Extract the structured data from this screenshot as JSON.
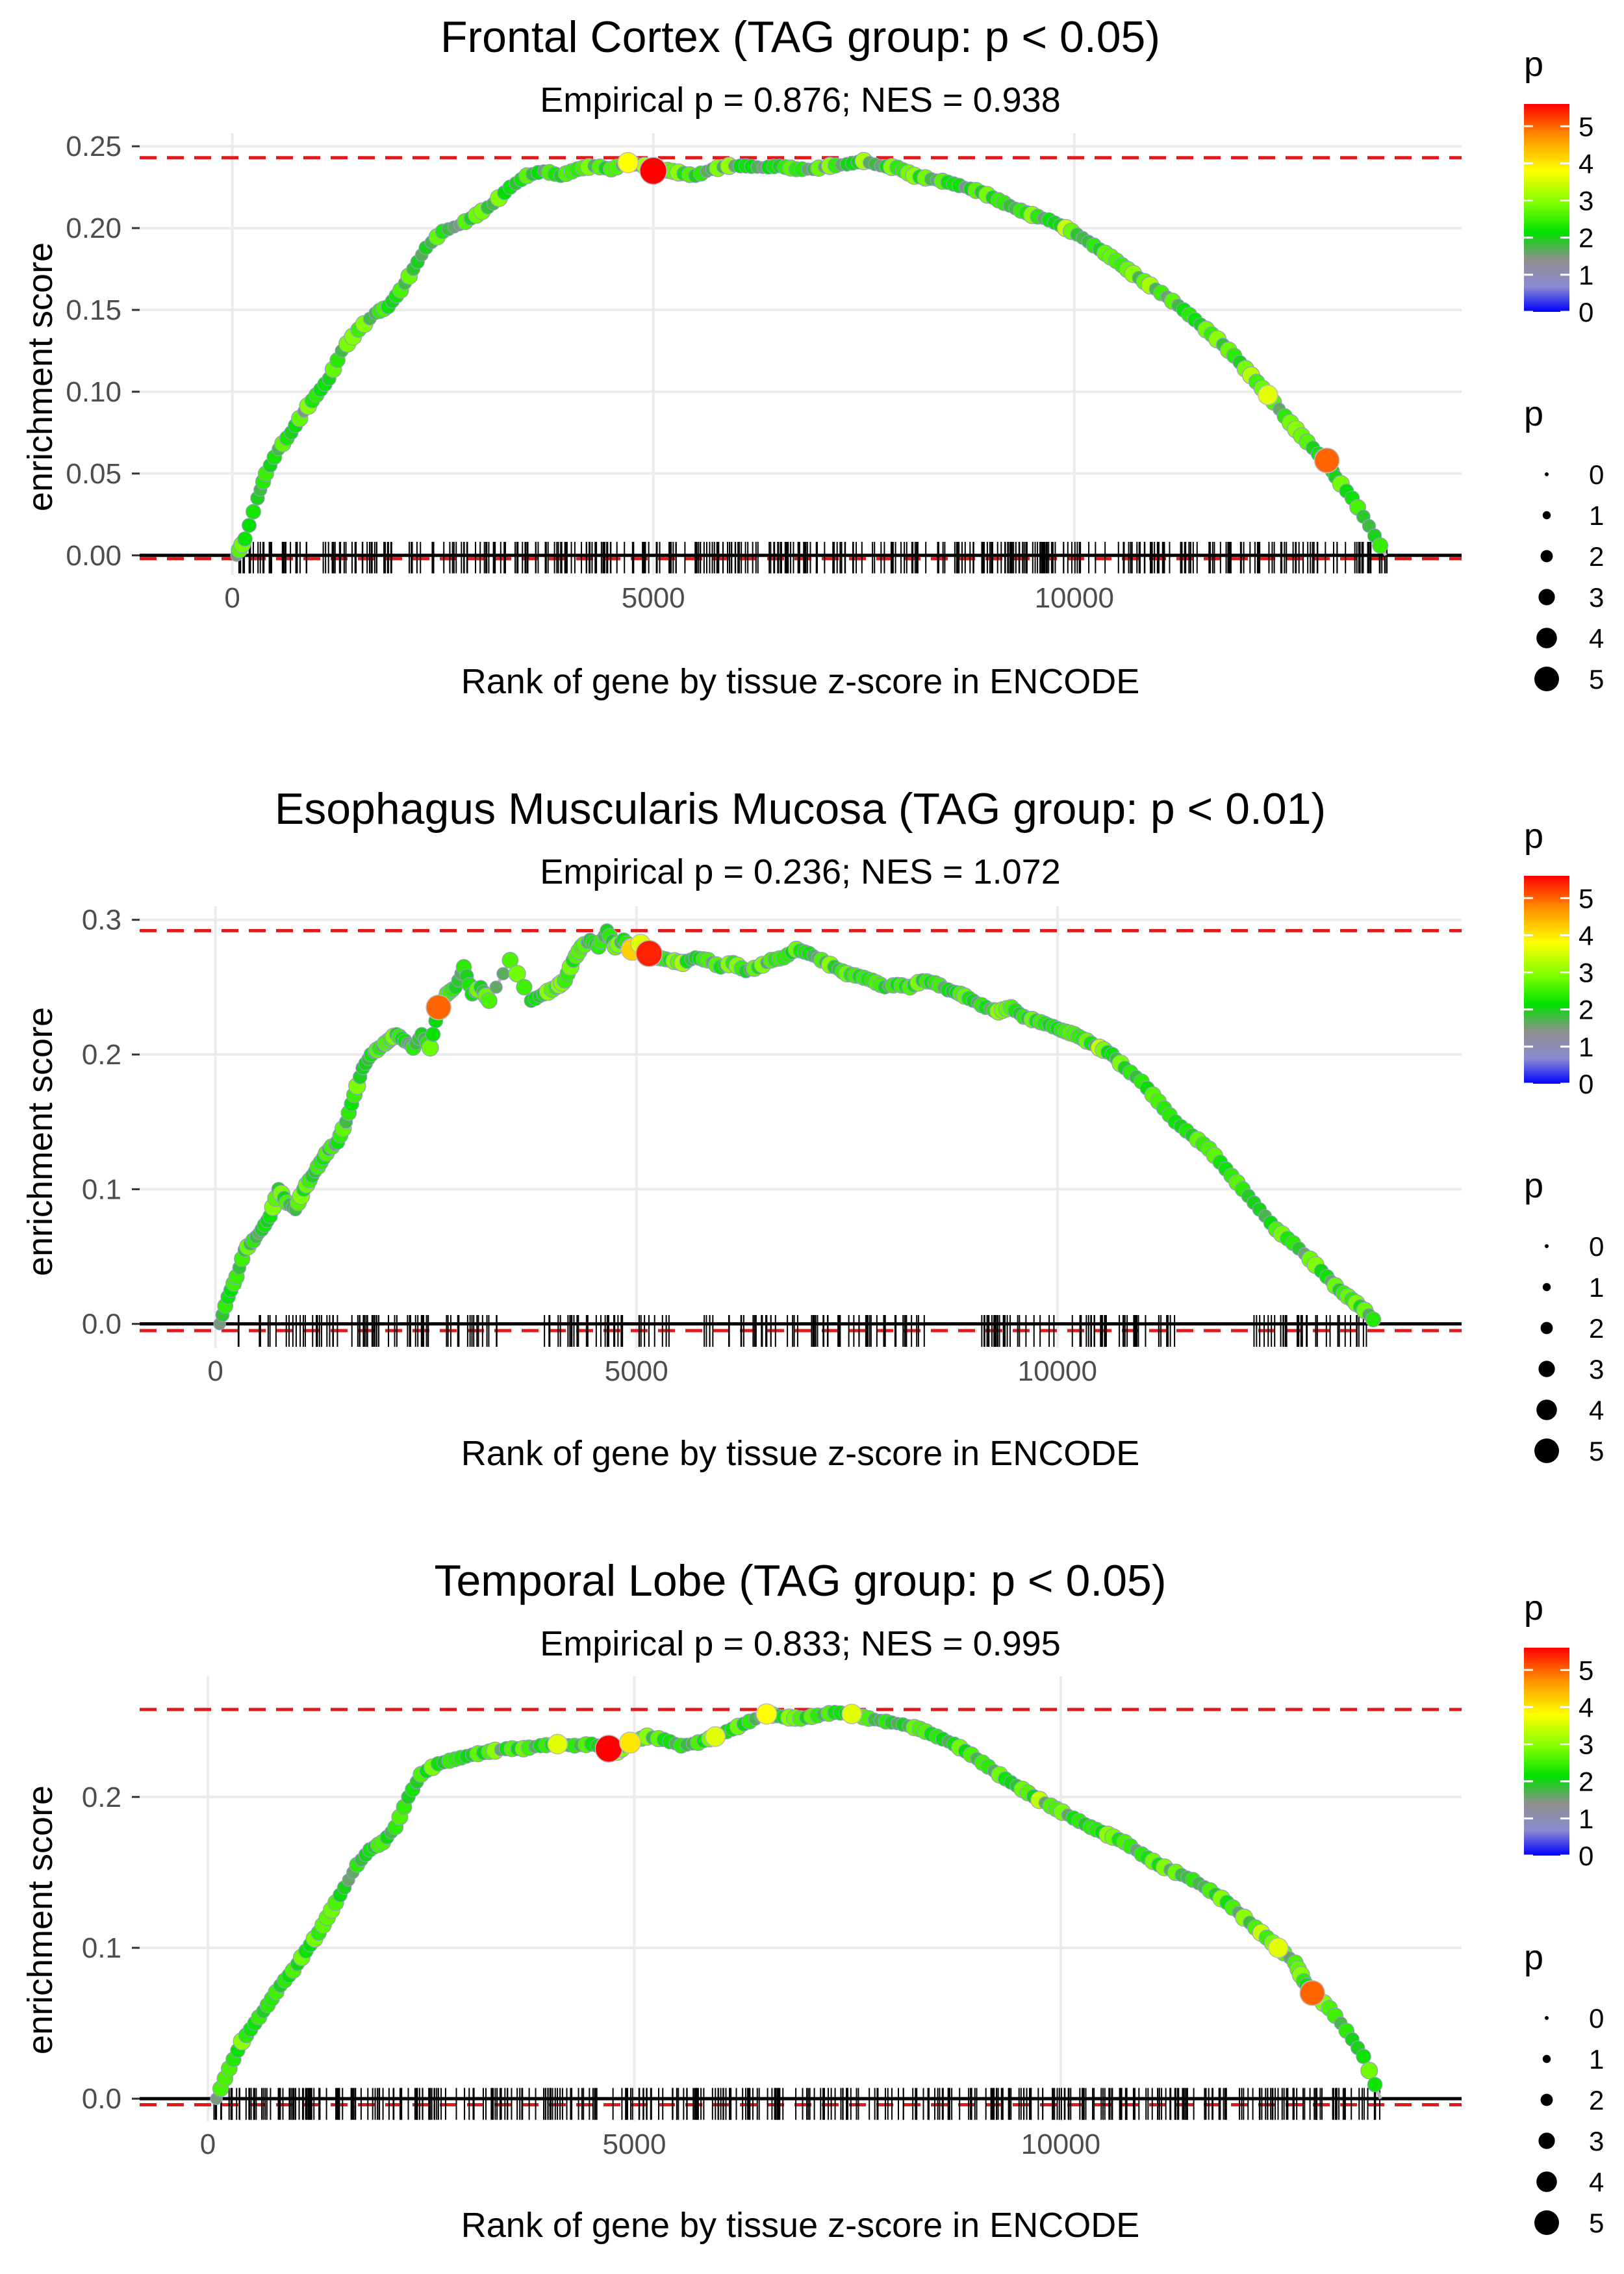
{
  "chart_data": [
    {
      "type": "line",
      "title": "Frontal Cortex (TAG group: p < 0.05)",
      "subtitle": "Empirical p = 0.876; NES = 0.938",
      "xlabel": "Rank of gene by tissue z-score in ENCODE",
      "ylabel": "enrichment score",
      "xlim": [
        -1100,
        14600
      ],
      "ylim": [
        -0.012,
        0.258
      ],
      "x_ticks": [
        0,
        5000,
        10000
      ],
      "x_tick_labels": [
        "0",
        "5000",
        "10000"
      ],
      "y_ticks": [
        0,
        0.05,
        0.1,
        0.15,
        0.2,
        0.25
      ],
      "y_tick_labels": [
        "0.00",
        "0.05",
        "0.10",
        "0.15",
        "0.20",
        "0.25"
      ],
      "max_es": 0.243,
      "min_es": -0.002,
      "n_genes": 13800,
      "series": [
        {
          "name": "running enrichment score",
          "x": [
            50,
            150,
            300,
            400,
            550,
            700,
            850,
            1000,
            1150,
            1300,
            1500,
            1700,
            1850,
            2000,
            2150,
            2300,
            2500,
            2700,
            2900,
            3100,
            3300,
            3500,
            3700,
            3900,
            4100,
            4300,
            4500,
            4700,
            4900,
            5000,
            5100,
            5300,
            5500,
            5700,
            5900,
            6100,
            6300,
            6500,
            6700,
            6900,
            7100,
            7300,
            7500,
            7700,
            7900,
            8100,
            8300,
            8500,
            8700,
            8900,
            9100,
            9300,
            9500,
            9700,
            9900,
            10100,
            10300,
            10500,
            10700,
            10900,
            11100,
            11300,
            11500,
            11700,
            11900,
            12100,
            12300,
            12500,
            12700,
            12900,
            13000,
            13100,
            13300,
            13500,
            13700
          ],
          "y": [
            0.0,
            0.01,
            0.035,
            0.05,
            0.065,
            0.075,
            0.088,
            0.098,
            0.108,
            0.125,
            0.138,
            0.148,
            0.152,
            0.162,
            0.175,
            0.188,
            0.198,
            0.202,
            0.208,
            0.215,
            0.225,
            0.232,
            0.235,
            0.232,
            0.236,
            0.238,
            0.236,
            0.24,
            0.238,
            0.235,
            0.236,
            0.234,
            0.232,
            0.236,
            0.238,
            0.238,
            0.237,
            0.238,
            0.236,
            0.236,
            0.238,
            0.239,
            0.241,
            0.238,
            0.237,
            0.232,
            0.23,
            0.228,
            0.225,
            0.222,
            0.217,
            0.212,
            0.208,
            0.205,
            0.2,
            0.194,
            0.187,
            0.18,
            0.172,
            0.165,
            0.158,
            0.15,
            0.141,
            0.132,
            0.122,
            0.11,
            0.098,
            0.085,
            0.073,
            0.062,
            0.058,
            0.048,
            0.035,
            0.018,
            0.0
          ],
          "p": [
            1.5,
            2.2,
            2.0,
            2.5,
            1.8,
            2.0,
            1.5,
            2.4,
            2.0,
            1.8,
            2.5,
            1.8,
            2.2,
            2.6,
            1.9,
            2.0,
            2.3,
            1.5,
            2.8,
            1.8,
            2.2,
            2.7,
            1.6,
            2.0,
            2.4,
            1.8,
            2.6,
            3.8,
            3.2,
            5.6,
            2.2,
            3.0,
            2.0,
            1.8,
            3.1,
            2.2,
            1.5,
            2.0,
            2.4,
            1.8,
            3.0,
            2.0,
            3.2,
            1.6,
            2.4,
            3.0,
            1.8,
            2.2,
            1.5,
            2.0,
            2.5,
            1.8,
            3.0,
            2.2,
            3.4,
            1.8,
            2.0,
            2.6,
            3.0,
            3.2,
            1.6,
            2.2,
            2.0,
            3.0,
            2.4,
            3.3,
            3.6,
            2.4,
            2.8,
            2.2,
            5.0,
            2.0,
            2.2,
            1.8,
            2.0
          ]
        }
      ],
      "gene_ticks": {
        "x_start": 20,
        "x_end": 13750,
        "count": 420
      },
      "legend": {
        "color_title": "p",
        "color_ticks": [
          0,
          1,
          2,
          3,
          4,
          5
        ],
        "size_title": "p",
        "size_ticks": [
          0,
          1,
          2,
          3,
          4,
          5
        ],
        "position": "right"
      }
    },
    {
      "type": "line",
      "title": "Esophagus Muscularis Mucosa (TAG group: p < 0.01)",
      "subtitle": "Empirical p = 0.236; NES = 1.072",
      "xlabel": "Rank of gene by tissue z-score in ENCODE",
      "ylabel": "enrichment score",
      "xlim": [
        -900,
        14800
      ],
      "ylim": [
        -0.018,
        0.31
      ],
      "x_ticks": [
        0,
        5000,
        10000
      ],
      "x_tick_labels": [
        "0",
        "5000",
        "10000"
      ],
      "y_ticks": [
        0,
        0.1,
        0.2,
        0.3
      ],
      "y_tick_labels": [
        "0.0",
        "0.1",
        "0.2",
        "0.3"
      ],
      "max_es": 0.292,
      "min_es": -0.005,
      "n_genes": 14000,
      "series": [
        {
          "name": "running enrichment score",
          "x": [
            50,
            150,
            250,
            350,
            450,
            550,
            650,
            750,
            850,
            950,
            1050,
            1150,
            1250,
            1350,
            1450,
            1550,
            1650,
            1750,
            1850,
            1950,
            2050,
            2150,
            2250,
            2350,
            2450,
            2550,
            2650,
            2750,
            2850,
            2950,
            3050,
            3150,
            3250,
            3500,
            3750,
            3900,
            4050,
            4150,
            4250,
            4350,
            4450,
            4550,
            4650,
            4750,
            4850,
            4950,
            5050,
            5150,
            5250,
            5400,
            5550,
            5700,
            5850,
            6000,
            6150,
            6300,
            6450,
            6600,
            6750,
            6900,
            7050,
            7200,
            7350,
            7500,
            7650,
            7800,
            7950,
            8100,
            8250,
            8400,
            8550,
            8700,
            8850,
            9000,
            9150,
            9300,
            9450,
            9600,
            9750,
            9900,
            10050,
            10200,
            10350,
            10500,
            10650,
            10800,
            11000,
            11200,
            11400,
            11600,
            11800,
            12000,
            12200,
            12400,
            12600,
            12800,
            13000,
            13200,
            13350,
            13500,
            13650,
            13800
          ],
          "y": [
            0.0,
            0.02,
            0.035,
            0.055,
            0.062,
            0.07,
            0.08,
            0.1,
            0.09,
            0.085,
            0.1,
            0.11,
            0.12,
            0.13,
            0.135,
            0.15,
            0.17,
            0.19,
            0.2,
            0.205,
            0.21,
            0.215,
            0.21,
            0.205,
            0.215,
            0.205,
            0.235,
            0.245,
            0.25,
            0.265,
            0.245,
            0.25,
            0.24,
            0.27,
            0.24,
            0.245,
            0.25,
            0.255,
            0.27,
            0.28,
            0.285,
            0.28,
            0.292,
            0.28,
            0.285,
            0.278,
            0.282,
            0.275,
            0.272,
            0.27,
            0.268,
            0.272,
            0.27,
            0.265,
            0.268,
            0.262,
            0.265,
            0.27,
            0.272,
            0.278,
            0.275,
            0.27,
            0.265,
            0.26,
            0.258,
            0.255,
            0.25,
            0.252,
            0.25,
            0.255,
            0.253,
            0.248,
            0.245,
            0.24,
            0.235,
            0.232,
            0.235,
            0.228,
            0.225,
            0.222,
            0.218,
            0.215,
            0.21,
            0.205,
            0.2,
            0.19,
            0.18,
            0.165,
            0.15,
            0.14,
            0.13,
            0.115,
            0.1,
            0.085,
            0.07,
            0.06,
            0.048,
            0.035,
            0.025,
            0.018,
            0.01,
            0.0
          ],
          "p": [
            1.5,
            2.2,
            2.5,
            2.0,
            2.4,
            2.0,
            2.2,
            2.0,
            2.6,
            1.8,
            2.2,
            2.0,
            2.4,
            2.0,
            2.2,
            1.8,
            2.5,
            2.0,
            2.2,
            2.4,
            2.6,
            2.0,
            2.2,
            2.4,
            2.0,
            2.8,
            5.0,
            2.6,
            2.0,
            2.4,
            2.2,
            2.0,
            2.6,
            2.6,
            2.0,
            2.2,
            2.4,
            2.5,
            2.2,
            2.6,
            2.0,
            2.4,
            2.0,
            2.8,
            2.2,
            4.2,
            3.6,
            5.4,
            2.6,
            2.2,
            3.2,
            2.0,
            2.6,
            2.2,
            2.4,
            2.0,
            2.2,
            2.6,
            2.4,
            2.8,
            2.2,
            2.6,
            2.0,
            2.8,
            2.2,
            2.4,
            2.0,
            2.2,
            2.6,
            2.0,
            2.4,
            2.2,
            2.6,
            2.0,
            2.2,
            3.0,
            2.6,
            2.4,
            2.2,
            2.0,
            2.4,
            2.6,
            2.8,
            3.4,
            2.2,
            2.0,
            2.4,
            2.6,
            2.2,
            2.0,
            2.6,
            2.2,
            2.4,
            2.0,
            2.6,
            2.4,
            2.8,
            2.2,
            2.0,
            2.4,
            2.8,
            2.0
          ]
        }
      ],
      "gene_ticks": {
        "segments": [
          [
            250,
            2550
          ],
          [
            2700,
            3400
          ],
          [
            3850,
            4900
          ],
          [
            5000,
            5400
          ],
          [
            5800,
            8500
          ],
          [
            9100,
            11600
          ],
          [
            12300,
            13700
          ]
        ],
        "count": 260
      },
      "legend": {
        "color_title": "p",
        "color_ticks": [
          0,
          1,
          2,
          3,
          4,
          5
        ],
        "size_title": "p",
        "size_ticks": [
          0,
          1,
          2,
          3,
          4,
          5
        ],
        "position": "right"
      }
    },
    {
      "type": "line",
      "title": "Temporal Lobe (TAG group: p < 0.05)",
      "subtitle": "Empirical p = 0.833; NES = 0.995",
      "xlabel": "Rank of gene by tissue z-score in ENCODE",
      "ylabel": "enrichment score",
      "xlim": [
        -800,
        14700
      ],
      "ylim": [
        -0.015,
        0.28
      ],
      "x_ticks": [
        0,
        5000,
        10000
      ],
      "x_tick_labels": [
        "0",
        "5000",
        "10000"
      ],
      "y_ticks": [
        0,
        0.1,
        0.2
      ],
      "y_tick_labels": [
        "0.0",
        "0.1",
        "0.2"
      ],
      "max_es": 0.258,
      "min_es": -0.004,
      "n_genes": 14000,
      "series": [
        {
          "name": "running enrichment score",
          "x": [
            100,
            250,
            400,
            550,
            700,
            850,
            1000,
            1150,
            1300,
            1450,
            1600,
            1750,
            1900,
            2050,
            2200,
            2350,
            2500,
            2700,
            2900,
            3100,
            3300,
            3500,
            3700,
            3900,
            4100,
            4300,
            4500,
            4700,
            4800,
            4950,
            5150,
            5350,
            5550,
            5750,
            5950,
            6150,
            6350,
            6550,
            6750,
            6950,
            7150,
            7350,
            7550,
            7750,
            7950,
            8150,
            8350,
            8550,
            8750,
            8950,
            9150,
            9350,
            9550,
            9750,
            9950,
            10150,
            10350,
            10550,
            10750,
            10950,
            11150,
            11350,
            11550,
            11750,
            11950,
            12150,
            12350,
            12550,
            12750,
            12850,
            12950,
            13150,
            13350,
            13550,
            13750
          ],
          "y": [
            0.0,
            0.02,
            0.038,
            0.05,
            0.062,
            0.075,
            0.085,
            0.098,
            0.11,
            0.125,
            0.14,
            0.155,
            0.165,
            0.17,
            0.18,
            0.2,
            0.215,
            0.222,
            0.225,
            0.228,
            0.23,
            0.232,
            0.232,
            0.234,
            0.235,
            0.234,
            0.235,
            0.232,
            0.23,
            0.236,
            0.24,
            0.238,
            0.234,
            0.236,
            0.24,
            0.245,
            0.25,
            0.255,
            0.253,
            0.252,
            0.254,
            0.256,
            0.255,
            0.252,
            0.25,
            0.248,
            0.245,
            0.24,
            0.235,
            0.228,
            0.22,
            0.212,
            0.205,
            0.198,
            0.192,
            0.186,
            0.18,
            0.175,
            0.17,
            0.162,
            0.155,
            0.15,
            0.145,
            0.138,
            0.13,
            0.12,
            0.11,
            0.1,
            0.09,
            0.078,
            0.07,
            0.06,
            0.045,
            0.028,
            0.0
          ],
          "p": [
            1.5,
            2.6,
            3.0,
            2.2,
            2.4,
            2.0,
            2.6,
            2.2,
            2.4,
            2.8,
            2.0,
            2.4,
            2.2,
            2.6,
            2.4,
            2.0,
            2.6,
            2.2,
            2.4,
            2.0,
            2.6,
            2.2,
            2.8,
            2.2,
            3.6,
            2.4,
            2.2,
            5.6,
            3.2,
            4.0,
            3.0,
            2.2,
            2.4,
            2.6,
            3.6,
            2.2,
            2.4,
            3.8,
            2.2,
            2.6,
            2.4,
            2.2,
            3.6,
            2.6,
            2.4,
            2.0,
            2.6,
            2.4,
            2.2,
            2.6,
            2.4,
            2.2,
            2.8,
            3.4,
            2.6,
            2.2,
            2.4,
            3.0,
            2.6,
            2.4,
            2.2,
            2.8,
            2.4,
            2.6,
            2.2,
            3.0,
            3.4,
            3.6,
            2.6,
            2.4,
            5.0,
            2.6,
            2.4,
            2.2,
            2.0
          ]
        }
      ],
      "gene_ticks": {
        "x_start": 50,
        "x_end": 13750,
        "count": 420
      },
      "legend": {
        "color_title": "p",
        "color_ticks": [
          0,
          1,
          2,
          3,
          4,
          5
        ],
        "size_title": "p",
        "size_ticks": [
          0,
          1,
          2,
          3,
          4,
          5
        ],
        "position": "right"
      }
    }
  ],
  "colors": {
    "reference_line": "#e31a1c",
    "zero_line": "#000000",
    "running_line": "#b8b8b8",
    "grid": "#ebebeb",
    "gradient": [
      "#0000ff",
      "#8a8ad0",
      "#8f8f8f",
      "#00e000",
      "#7cff00",
      "#ffff00",
      "#ff8c00",
      "#ff0000"
    ]
  }
}
